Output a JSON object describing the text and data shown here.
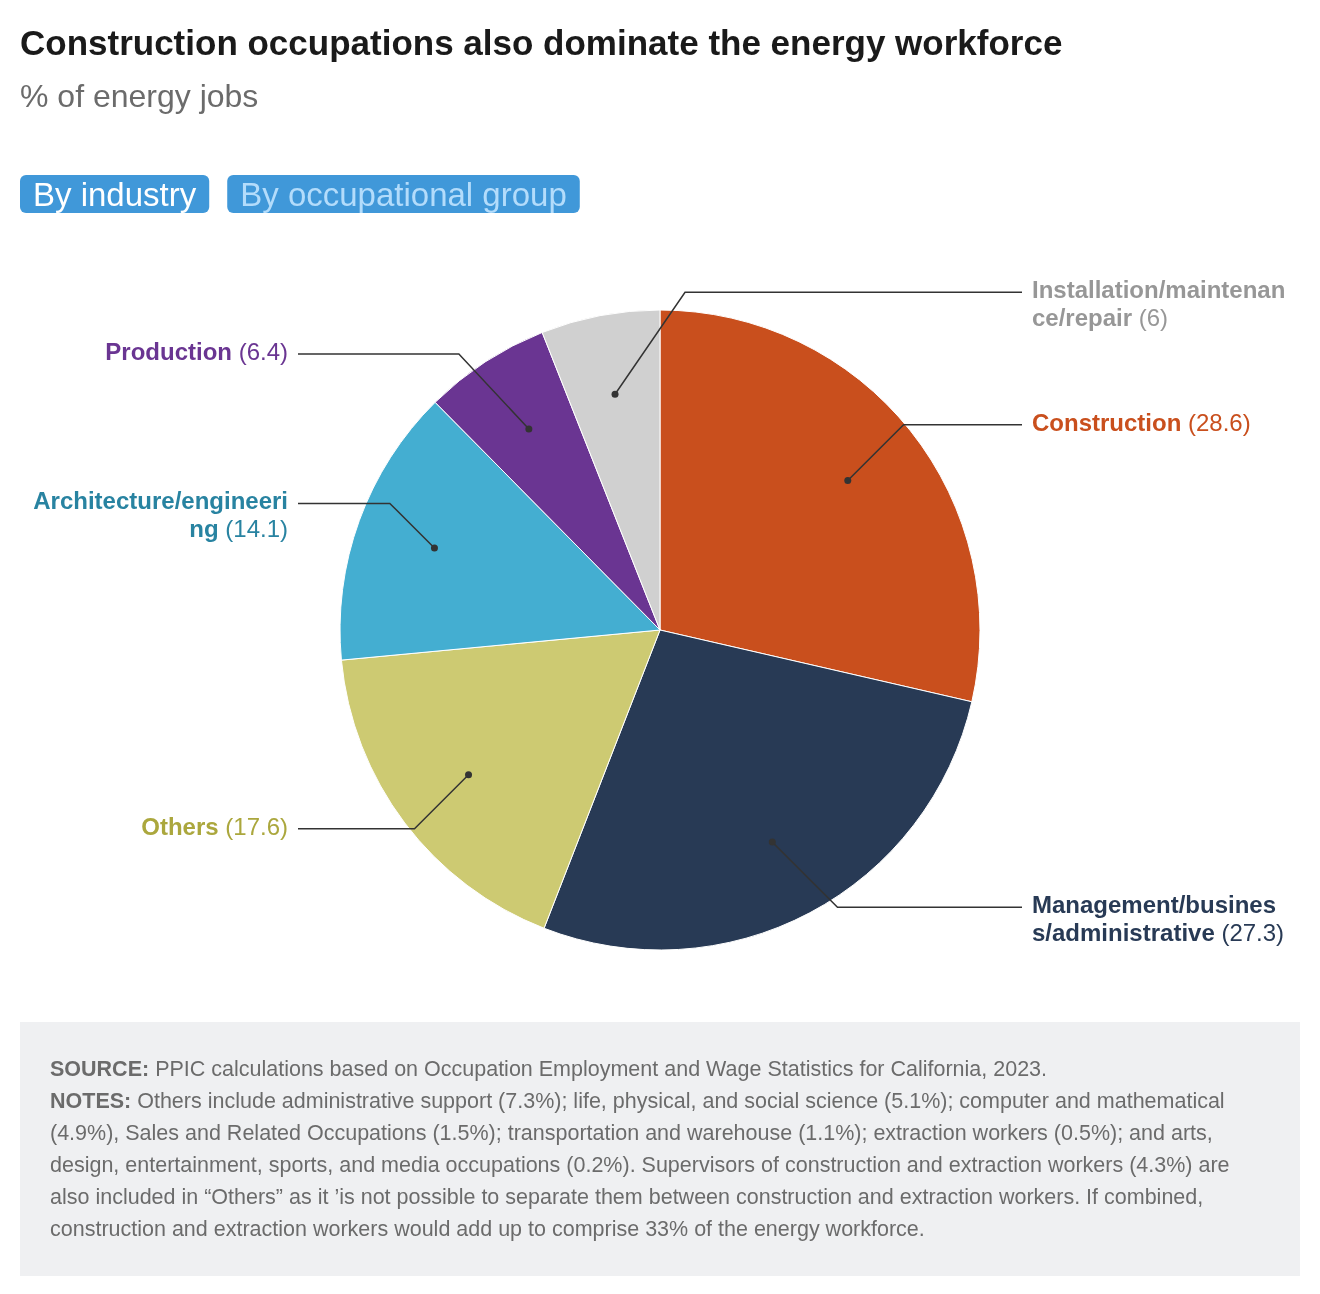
{
  "chart_data": {
    "type": "pie",
    "title": "Construction occupations also dominate the energy workforce",
    "subtitle": "% of energy jobs",
    "categories": [
      "Construction",
      "Management/business/administrative",
      "Others",
      "Architecture/engineering",
      "Production",
      "Installation/maintenance/repair"
    ],
    "values": [
      28.6,
      27.3,
      17.6,
      14.1,
      6.4,
      6
    ],
    "colors": [
      "#c94f1d",
      "#283a55",
      "#cdca72",
      "#44aed1",
      "#6a3592",
      "#d0d0d0"
    ],
    "value_labels": [
      "(28.6)",
      "(27.3)",
      "(17.6)",
      "(14.1)",
      "(6.4)",
      "(6)"
    ],
    "annotations": [
      "By industry",
      "By occupational group",
      "SOURCE: PPIC calculations based on Occupation Employment and Wage Statistics for California, 2023.",
      "NOTES: Others include administrative support (7.3%); life, physical, and social science (5.1%); computer and mathematical (4.9%), Sales and Related Occupations (1.5%); transportation and warehouse (1.1%); extraction workers (0.5%); and arts, design, entertainment, sports, and media occupations (0.2%). Supervisors of construction and extraction workers (4.3%) are also included in “Others” as it ’is not possible to separate them between construction and extraction workers. If combined, construction and extraction workers would add up to comprise 33% of the energy workforce."
    ]
  }
}
